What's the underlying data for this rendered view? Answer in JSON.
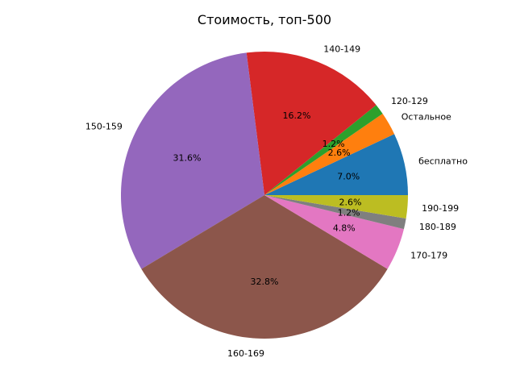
{
  "chart_data": {
    "type": "pie",
    "title": "Стоимость, топ-500",
    "start_angle_deg": 0,
    "direction": "counterclockwise",
    "slices": [
      {
        "label": "бесплатно",
        "value": 7.0,
        "pct_label": "7.0%",
        "color": "#1f77b4"
      },
      {
        "label": "Остальное",
        "value": 2.6,
        "pct_label": "2.6%",
        "color": "#ff7f0e"
      },
      {
        "label": "120-129",
        "value": 1.2,
        "pct_label": "1.2%",
        "color": "#2ca02c"
      },
      {
        "label": "140-149",
        "value": 16.2,
        "pct_label": "16.2%",
        "color": "#d62728"
      },
      {
        "label": "150-159",
        "value": 31.6,
        "pct_label": "31.6%",
        "color": "#9467bd"
      },
      {
        "label": "160-169",
        "value": 32.8,
        "pct_label": "32.8%",
        "color": "#8c564b"
      },
      {
        "label": "170-179",
        "value": 4.8,
        "pct_label": "4.8%",
        "color": "#e377c2"
      },
      {
        "label": "180-189",
        "value": 1.2,
        "pct_label": "1.2%",
        "color": "#7f7f7f"
      },
      {
        "label": "190-199",
        "value": 2.6,
        "pct_label": "2.6%",
        "color": "#bcbd22"
      }
    ]
  }
}
